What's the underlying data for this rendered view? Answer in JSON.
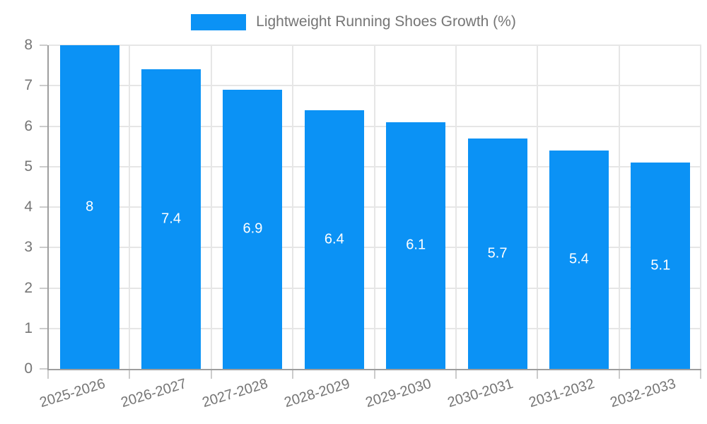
{
  "legend": {
    "label": "Lightweight Running Shoes Growth (%)",
    "swatch_color": "#0b92f5"
  },
  "chart_data": {
    "type": "bar",
    "title": "Lightweight Running Shoes Growth (%)",
    "categories": [
      "2025-2026",
      "2026-2027",
      "2027-2028",
      "2028-2029",
      "2029-2030",
      "2030-2031",
      "2031-2032",
      "2032-2033"
    ],
    "values": [
      8,
      7.4,
      6.9,
      6.4,
      6.1,
      5.7,
      5.4,
      5.1
    ],
    "value_labels": [
      "8",
      "7.4",
      "6.9",
      "6.4",
      "6.1",
      "5.7",
      "5.4",
      "5.1"
    ],
    "series_name": "Lightweight Running Shoes Growth (%)",
    "xlabel": "",
    "ylabel": "",
    "ylim": [
      0,
      8
    ],
    "yticks": [
      0,
      1,
      2,
      3,
      4,
      5,
      6,
      7,
      8
    ],
    "grid": true,
    "legend_position": "top-center",
    "x_tick_rotation_deg": -17,
    "colors": {
      "bar": "#0b92f5",
      "bar_label": "#ffffff",
      "axis_line": "#9e9e9e",
      "gridline": "#e6e6e6",
      "tick_mark": "#cccccc",
      "axis_text": "#757575",
      "legend_text": "#757575",
      "background": "#ffffff"
    }
  }
}
